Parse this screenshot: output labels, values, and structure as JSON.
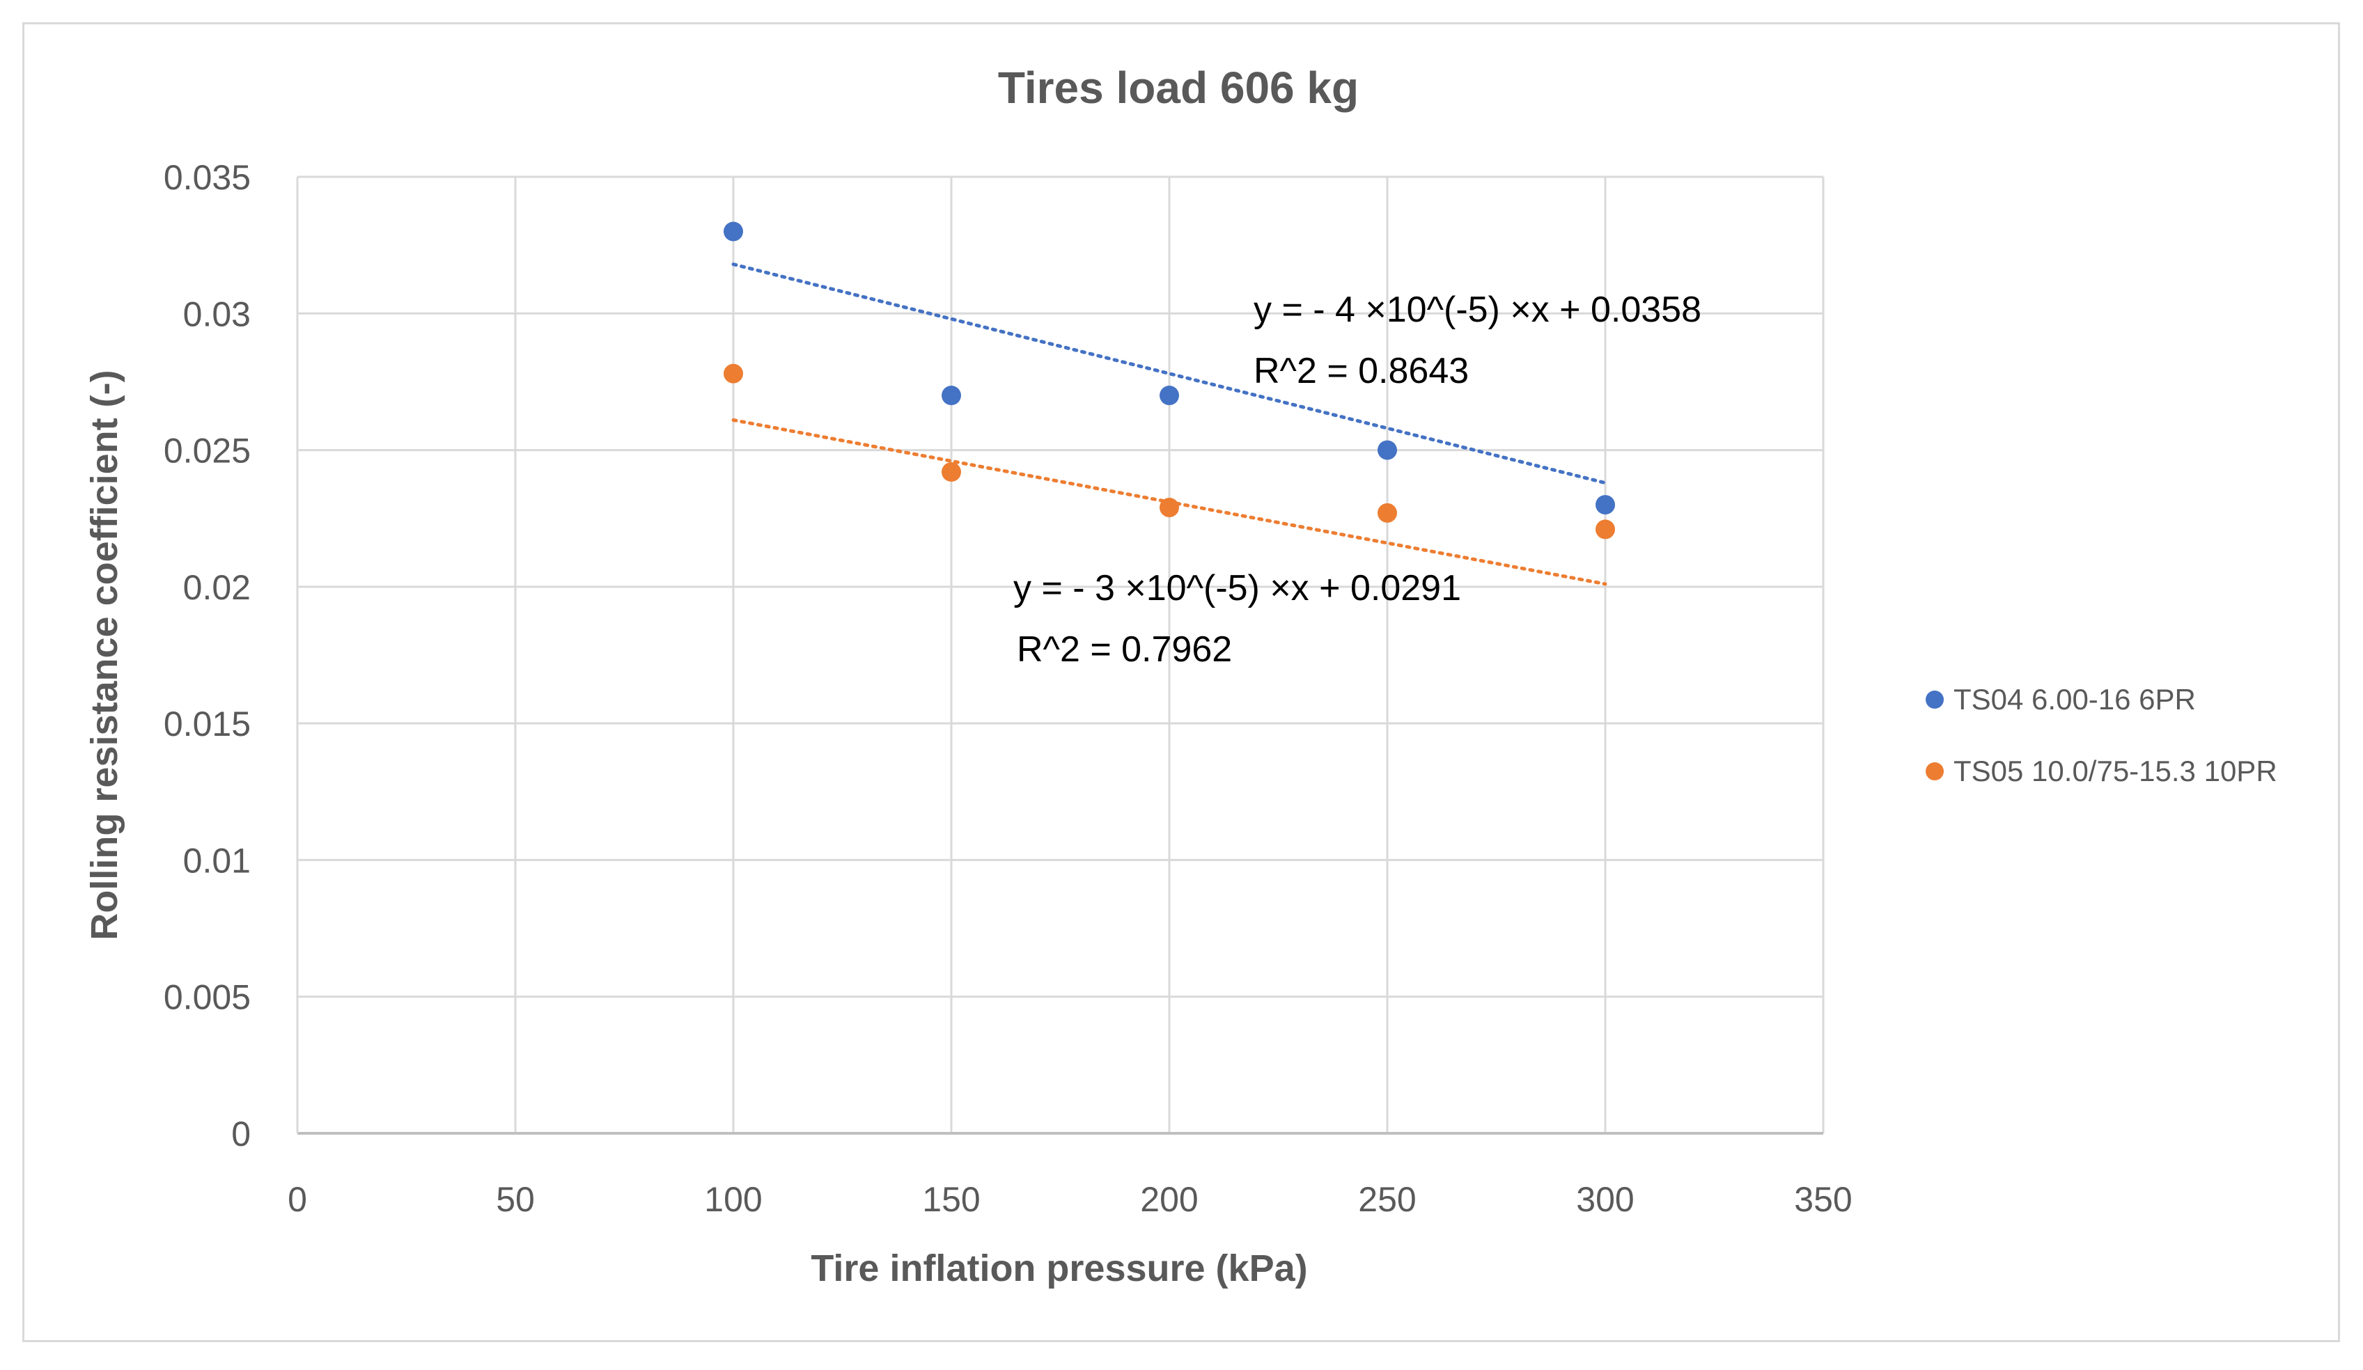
{
  "chart_data": {
    "type": "scatter",
    "title": "Tires load 606 kg",
    "xlabel": "Tire inflation pressure (kPa)",
    "ylabel": "Rolling resistance coefficient (-)",
    "xlim": [
      0,
      350
    ],
    "ylim": [
      0,
      0.035
    ],
    "x_ticks": [
      "0",
      "50",
      "100",
      "150",
      "200",
      "250",
      "300",
      "350"
    ],
    "y_ticks": [
      "0",
      "0.005",
      "0.01",
      "0.015",
      "0.02",
      "0.025",
      "0.03",
      "0.035"
    ],
    "grid": true,
    "legend_position": "right",
    "series": [
      {
        "name": "TS04 6.00-16 6PR",
        "color": "#4472c4",
        "x": [
          100,
          150,
          200,
          250,
          300
        ],
        "y": [
          0.033,
          0.027,
          0.027,
          0.025,
          0.023
        ],
        "trendline": {
          "type": "linear",
          "slope": -4e-05,
          "intercept": 0.0358,
          "r2": 0.8643
        },
        "equation": "y = - 4 ×10^(-5) ×x + 0.0358",
        "r2_label": "R^2 = 0.8643"
      },
      {
        "name": "TS05 10.0/75-15.3 10PR",
        "color": "#ed7d31",
        "x": [
          100,
          150,
          200,
          250,
          300
        ],
        "y": [
          0.0278,
          0.0242,
          0.0229,
          0.0227,
          0.0221
        ],
        "trendline": {
          "type": "linear",
          "slope": -3e-05,
          "intercept": 0.0291,
          "r2": 0.7962
        },
        "equation": "y = - 3 ×10^(-5) ×x + 0.0291",
        "r2_label": "R^2 = 0.7962"
      }
    ]
  }
}
